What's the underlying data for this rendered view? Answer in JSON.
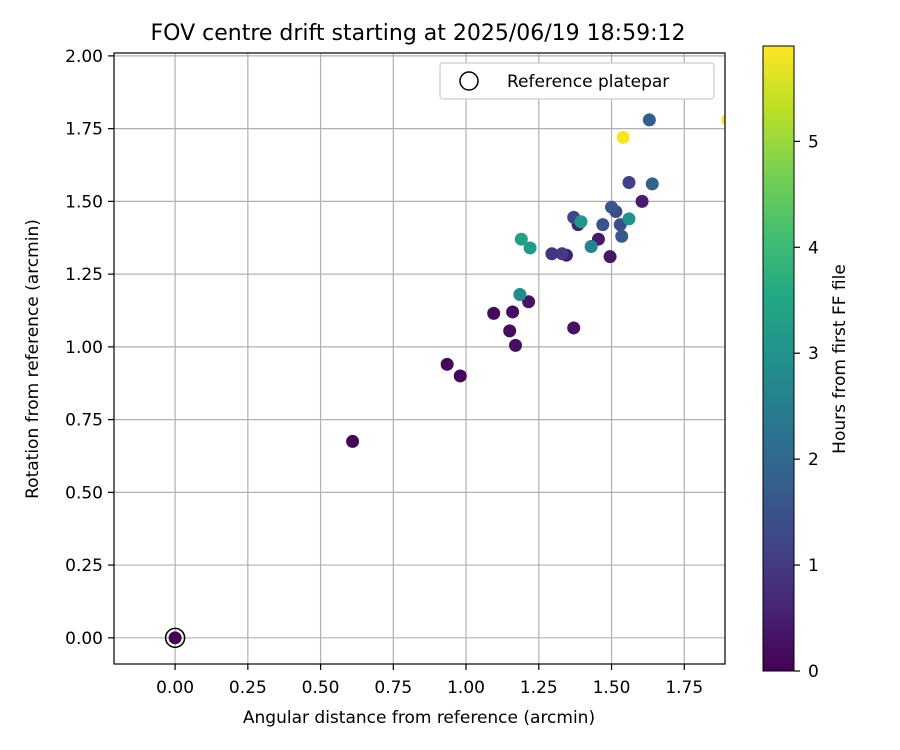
{
  "chart_data": {
    "type": "scatter",
    "title": "FOV centre drift starting at 2025/06/19 18:59:12",
    "xlabel": "Angular distance from reference (arcmin)",
    "ylabel": "Rotation from reference (arcmin)",
    "xlim": [
      -0.21,
      1.89
    ],
    "ylim": [
      -0.09,
      2.01
    ],
    "xticks": [
      "0.00",
      "0.25",
      "0.50",
      "0.75",
      "1.00",
      "1.25",
      "1.50",
      "1.75"
    ],
    "yticks": [
      "0.00",
      "0.25",
      "0.50",
      "0.75",
      "1.00",
      "1.25",
      "1.50",
      "1.75",
      "2.00"
    ],
    "grid": true,
    "legend": {
      "placement": "top-right",
      "entries": [
        "Reference platepar"
      ]
    },
    "colorbar": {
      "label": "Hours from first FF file",
      "range": [
        0,
        5.9
      ],
      "ticks": [
        "0",
        "1",
        "2",
        "3",
        "4",
        "5"
      ],
      "colormap": "viridis"
    },
    "reference_point": {
      "x": 0.0,
      "y": 0.0
    },
    "points": [
      {
        "x": 0.0,
        "y": 0.0,
        "hours": 0.0
      },
      {
        "x": 0.61,
        "y": 0.675,
        "hours": 0.05
      },
      {
        "x": 0.935,
        "y": 0.94,
        "hours": 0.1
      },
      {
        "x": 0.98,
        "y": 0.9,
        "hours": 0.1
      },
      {
        "x": 1.095,
        "y": 1.115,
        "hours": 0.15
      },
      {
        "x": 1.15,
        "y": 1.055,
        "hours": 0.2
      },
      {
        "x": 1.16,
        "y": 1.12,
        "hours": 0.2
      },
      {
        "x": 1.17,
        "y": 1.005,
        "hours": 0.25
      },
      {
        "x": 1.215,
        "y": 1.155,
        "hours": 0.3
      },
      {
        "x": 1.37,
        "y": 1.065,
        "hours": 0.3
      },
      {
        "x": 1.495,
        "y": 1.31,
        "hours": 0.35
      },
      {
        "x": 1.455,
        "y": 1.37,
        "hours": 0.4
      },
      {
        "x": 1.605,
        "y": 1.5,
        "hours": 0.45
      },
      {
        "x": 1.345,
        "y": 1.315,
        "hours": 0.5
      },
      {
        "x": 1.385,
        "y": 1.42,
        "hours": 0.55
      },
      {
        "x": 1.295,
        "y": 1.32,
        "hours": 0.9
      },
      {
        "x": 1.33,
        "y": 1.32,
        "hours": 1.0
      },
      {
        "x": 1.56,
        "y": 1.565,
        "hours": 1.1
      },
      {
        "x": 1.37,
        "y": 1.445,
        "hours": 1.2
      },
      {
        "x": 1.515,
        "y": 1.465,
        "hours": 1.3
      },
      {
        "x": 1.53,
        "y": 1.42,
        "hours": 1.4
      },
      {
        "x": 1.47,
        "y": 1.42,
        "hours": 1.5
      },
      {
        "x": 1.5,
        "y": 1.48,
        "hours": 1.55
      },
      {
        "x": 1.535,
        "y": 1.38,
        "hours": 1.6
      },
      {
        "x": 1.63,
        "y": 1.78,
        "hours": 1.75
      },
      {
        "x": 1.64,
        "y": 1.56,
        "hours": 1.85
      },
      {
        "x": 1.43,
        "y": 1.345,
        "hours": 2.6
      },
      {
        "x": 1.185,
        "y": 1.18,
        "hours": 2.8
      },
      {
        "x": 1.56,
        "y": 1.44,
        "hours": 3.0
      },
      {
        "x": 1.395,
        "y": 1.43,
        "hours": 3.1
      },
      {
        "x": 1.22,
        "y": 1.34,
        "hours": 3.2
      },
      {
        "x": 1.19,
        "y": 1.37,
        "hours": 3.3
      },
      {
        "x": 1.54,
        "y": 1.72,
        "hours": 5.85
      },
      {
        "x": 1.9,
        "y": 1.78,
        "hours": 5.85
      }
    ]
  }
}
